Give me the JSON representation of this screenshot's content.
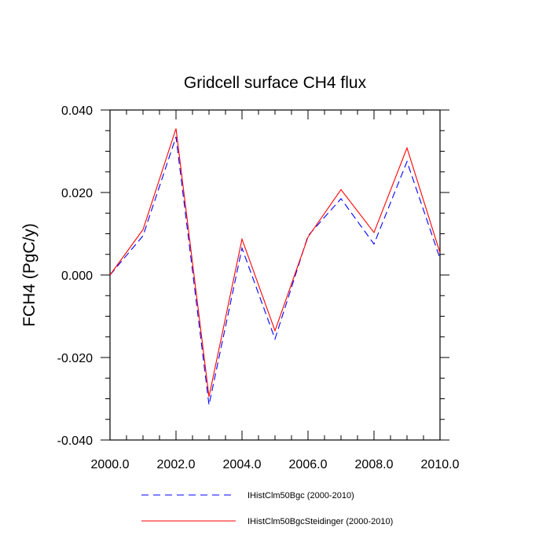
{
  "chart_data": {
    "type": "line",
    "title": "Gridcell surface CH4 flux",
    "xlabel": "",
    "ylabel": "FCH4  (PgC/y)",
    "xlim": [
      2000,
      2010
    ],
    "ylim": [
      -0.04,
      0.04
    ],
    "x_ticks": [
      2000,
      2002,
      2004,
      2006,
      2008,
      2010
    ],
    "x_tick_labels": [
      "2000.0",
      "2002.0",
      "2004.0",
      "2006.0",
      "2008.0",
      "2010.0"
    ],
    "y_ticks": [
      -0.04,
      -0.02,
      0.0,
      0.02,
      0.04
    ],
    "y_tick_labels": [
      "-0.040",
      "-0.020",
      "0.000",
      "0.020",
      "0.040"
    ],
    "grid": false,
    "legend_position": "bottom",
    "x": [
      2000,
      2001,
      2002,
      2003,
      2004,
      2005,
      2006,
      2007,
      2008,
      2009,
      2010
    ],
    "series": [
      {
        "name": "IHistClm50Bgc (2000-2010)",
        "color": "#0000ff",
        "dash": "dashed",
        "values": [
          0.0,
          0.0095,
          0.0335,
          -0.0315,
          0.0065,
          -0.0155,
          0.0095,
          0.0185,
          0.0075,
          0.0275,
          0.004
        ]
      },
      {
        "name": "IHistClm50BgcSteidinger (2000-2010)",
        "color": "#ff0000",
        "dash": "solid",
        "values": [
          0.0,
          0.011,
          0.0355,
          -0.0295,
          0.0087,
          -0.0135,
          0.0092,
          0.0207,
          0.0103,
          0.0308,
          0.0054
        ]
      }
    ]
  }
}
